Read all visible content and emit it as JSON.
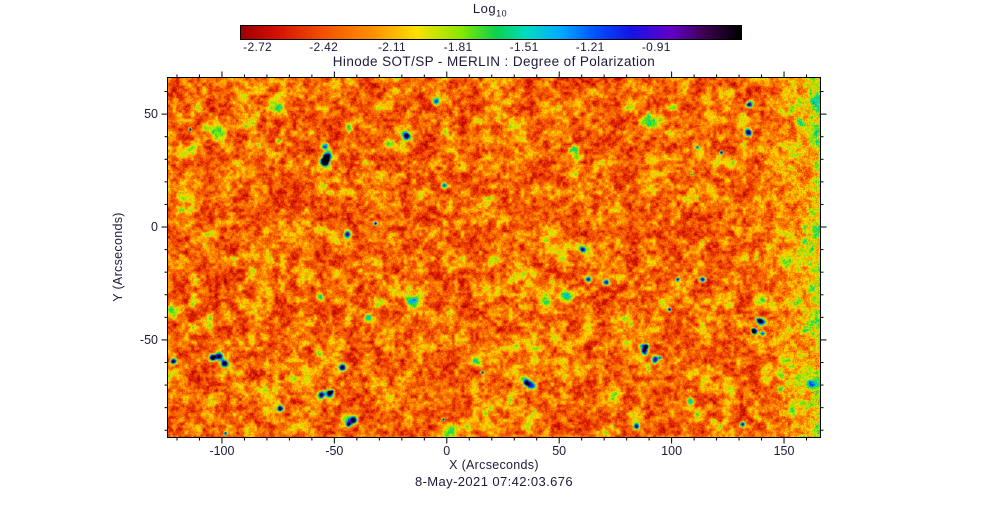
{
  "figure": {
    "background": "#ffffff",
    "text_color": "#1b1b3a",
    "axis_color": "#000000"
  },
  "chart_data": {
    "type": "heatmap",
    "title": "Hinode SOT/SP - MERLIN : Degree of Polarization",
    "xlabel": "X (Arcseconds)",
    "ylabel": "Y (Arcseconds)",
    "timestamp": "8-May-2021 07:42:03.676",
    "x_range": [
      -124,
      166
    ],
    "y_range": [
      -93,
      66
    ],
    "x_ticks": [
      -100,
      -50,
      0,
      50,
      100,
      150
    ],
    "y_ticks": [
      50,
      0,
      -50
    ],
    "x_minor_step": 10,
    "y_minor_step": 10,
    "grid": false,
    "colorbar": {
      "label_base": "Log",
      "label_sub": "10",
      "orientation": "horizontal",
      "position": "top",
      "ticks": [
        -2.72,
        -2.42,
        -2.11,
        -1.81,
        -1.51,
        -1.21,
        -0.91
      ],
      "range": [
        -2.8,
        -0.53
      ],
      "stops": [
        {
          "p": 0.0,
          "c": "#9e0000"
        },
        {
          "p": 0.07,
          "c": "#d41000"
        },
        {
          "p": 0.16,
          "c": "#f24e00"
        },
        {
          "p": 0.27,
          "c": "#ff9500"
        },
        {
          "p": 0.35,
          "c": "#ffe000"
        },
        {
          "p": 0.44,
          "c": "#86e800"
        },
        {
          "p": 0.51,
          "c": "#0cd24e"
        },
        {
          "p": 0.57,
          "c": "#00dcc0"
        },
        {
          "p": 0.64,
          "c": "#00aaff"
        },
        {
          "p": 0.71,
          "c": "#0050ff"
        },
        {
          "p": 0.78,
          "c": "#1414e6"
        },
        {
          "p": 0.86,
          "c": "#6400c8"
        },
        {
          "p": 0.93,
          "c": "#3c0050"
        },
        {
          "p": 1.0,
          "c": "#000000"
        }
      ]
    },
    "field": {
      "description": "Log10 degree-of-polarization map of quiet Sun: dominant red/orange background near -2.6, mottled yellow-green magnetic network lanes near -2.1, compact strong-polarization patches reaching -0.9 (cyan/blue/black cores with green halos), enhanced noisy yellow-green band along the right edge, faint vertical seam near x = -80 arcsec",
      "background_level": -2.6,
      "network_level": -2.1,
      "spot_peak_level": -0.9
    }
  }
}
